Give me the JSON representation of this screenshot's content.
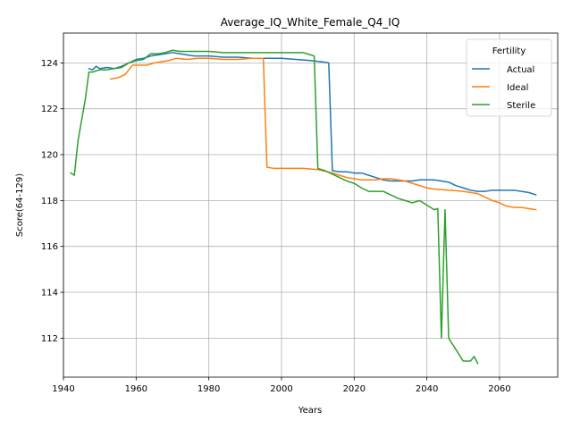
{
  "chart_data": {
    "type": "line",
    "title": "Average_IQ_White_Female_Q4_IQ",
    "xlabel": "Years",
    "ylabel": "Score(64-129)",
    "xlim": [
      1940,
      2076
    ],
    "ylim": [
      110.3,
      125.3
    ],
    "xticks": [
      1940,
      1960,
      1980,
      2000,
      2020,
      2040,
      2060
    ],
    "yticks": [
      112,
      114,
      116,
      118,
      120,
      122,
      124
    ],
    "grid": true,
    "legend": {
      "title": "Fertility",
      "placement": "top-right"
    },
    "series": [
      {
        "name": "Actual",
        "color": "#1f77b4",
        "points": [
          [
            1947,
            123.75
          ],
          [
            1948,
            123.7
          ],
          [
            1949,
            123.85
          ],
          [
            1950,
            123.75
          ],
          [
            1952,
            123.8
          ],
          [
            1954,
            123.75
          ],
          [
            1956,
            123.85
          ],
          [
            1958,
            124.0
          ],
          [
            1960,
            124.15
          ],
          [
            1962,
            124.2
          ],
          [
            1964,
            124.3
          ],
          [
            1966,
            124.35
          ],
          [
            1968,
            124.4
          ],
          [
            1970,
            124.45
          ],
          [
            1972,
            124.4
          ],
          [
            1974,
            124.35
          ],
          [
            1976,
            124.3
          ],
          [
            1980,
            124.3
          ],
          [
            1984,
            124.25
          ],
          [
            1988,
            124.25
          ],
          [
            1992,
            124.2
          ],
          [
            1996,
            124.2
          ],
          [
            2000,
            124.2
          ],
          [
            2004,
            124.15
          ],
          [
            2008,
            124.1
          ],
          [
            2011,
            124.05
          ],
          [
            2013,
            124.0
          ],
          [
            2014,
            119.3
          ],
          [
            2016,
            119.25
          ],
          [
            2018,
            119.25
          ],
          [
            2020,
            119.2
          ],
          [
            2022,
            119.2
          ],
          [
            2024,
            119.1
          ],
          [
            2026,
            119.0
          ],
          [
            2028,
            118.9
          ],
          [
            2030,
            118.85
          ],
          [
            2032,
            118.85
          ],
          [
            2034,
            118.85
          ],
          [
            2036,
            118.85
          ],
          [
            2038,
            118.9
          ],
          [
            2040,
            118.9
          ],
          [
            2042,
            118.9
          ],
          [
            2044,
            118.85
          ],
          [
            2046,
            118.8
          ],
          [
            2048,
            118.65
          ],
          [
            2050,
            118.55
          ],
          [
            2052,
            118.45
          ],
          [
            2054,
            118.4
          ],
          [
            2056,
            118.4
          ],
          [
            2058,
            118.45
          ],
          [
            2060,
            118.45
          ],
          [
            2062,
            118.45
          ],
          [
            2064,
            118.45
          ],
          [
            2066,
            118.4
          ],
          [
            2068,
            118.35
          ],
          [
            2070,
            118.25
          ]
        ]
      },
      {
        "name": "Ideal",
        "color": "#ff7f0e",
        "points": [
          [
            1953,
            123.3
          ],
          [
            1955,
            123.35
          ],
          [
            1957,
            123.5
          ],
          [
            1958,
            123.7
          ],
          [
            1959,
            123.9
          ],
          [
            1961,
            123.9
          ],
          [
            1963,
            123.9
          ],
          [
            1965,
            124.0
          ],
          [
            1967,
            124.05
          ],
          [
            1969,
            124.1
          ],
          [
            1971,
            124.2
          ],
          [
            1974,
            124.15
          ],
          [
            1977,
            124.2
          ],
          [
            1980,
            124.2
          ],
          [
            1984,
            124.15
          ],
          [
            1988,
            124.15
          ],
          [
            1992,
            124.2
          ],
          [
            1995,
            124.2
          ],
          [
            1996,
            119.45
          ],
          [
            1998,
            119.4
          ],
          [
            2002,
            119.4
          ],
          [
            2006,
            119.4
          ],
          [
            2010,
            119.35
          ],
          [
            2014,
            119.2
          ],
          [
            2016,
            119.1
          ],
          [
            2018,
            119.0
          ],
          [
            2020,
            118.95
          ],
          [
            2022,
            118.9
          ],
          [
            2024,
            118.9
          ],
          [
            2026,
            118.9
          ],
          [
            2028,
            118.95
          ],
          [
            2030,
            118.95
          ],
          [
            2032,
            118.9
          ],
          [
            2034,
            118.85
          ],
          [
            2036,
            118.75
          ],
          [
            2038,
            118.65
          ],
          [
            2040,
            118.55
          ],
          [
            2042,
            118.5
          ],
          [
            2046,
            118.45
          ],
          [
            2050,
            118.4
          ],
          [
            2052,
            118.35
          ],
          [
            2054,
            118.3
          ],
          [
            2056,
            118.15
          ],
          [
            2058,
            118.0
          ],
          [
            2060,
            117.9
          ],
          [
            2062,
            117.75
          ],
          [
            2064,
            117.7
          ],
          [
            2066,
            117.7
          ],
          [
            2068,
            117.65
          ],
          [
            2070,
            117.6
          ]
        ]
      },
      {
        "name": "Sterile",
        "color": "#2ca02c",
        "points": [
          [
            1942,
            119.2
          ],
          [
            1943,
            119.1
          ],
          [
            1944,
            120.6
          ],
          [
            1946,
            122.4
          ],
          [
            1947,
            123.6
          ],
          [
            1948,
            123.6
          ],
          [
            1950,
            123.7
          ],
          [
            1952,
            123.7
          ],
          [
            1954,
            123.75
          ],
          [
            1956,
            123.8
          ],
          [
            1958,
            124.0
          ],
          [
            1960,
            124.1
          ],
          [
            1962,
            124.15
          ],
          [
            1964,
            124.4
          ],
          [
            1966,
            124.4
          ],
          [
            1968,
            124.45
          ],
          [
            1970,
            124.55
          ],
          [
            1972,
            124.5
          ],
          [
            1976,
            124.5
          ],
          [
            1980,
            124.5
          ],
          [
            1984,
            124.45
          ],
          [
            1988,
            124.45
          ],
          [
            1992,
            124.45
          ],
          [
            1996,
            124.45
          ],
          [
            2000,
            124.45
          ],
          [
            2004,
            124.45
          ],
          [
            2006,
            124.45
          ],
          [
            2008,
            124.35
          ],
          [
            2009,
            124.3
          ],
          [
            2010,
            119.4
          ],
          [
            2012,
            119.3
          ],
          [
            2014,
            119.15
          ],
          [
            2016,
            119.0
          ],
          [
            2018,
            118.85
          ],
          [
            2020,
            118.75
          ],
          [
            2022,
            118.55
          ],
          [
            2024,
            118.4
          ],
          [
            2026,
            118.4
          ],
          [
            2028,
            118.4
          ],
          [
            2030,
            118.25
          ],
          [
            2032,
            118.1
          ],
          [
            2034,
            118.0
          ],
          [
            2036,
            117.9
          ],
          [
            2038,
            118.0
          ],
          [
            2040,
            117.8
          ],
          [
            2042,
            117.6
          ],
          [
            2043,
            117.65
          ],
          [
            2044,
            112.0
          ],
          [
            2045,
            117.6
          ],
          [
            2046,
            112.0
          ],
          [
            2048,
            111.5
          ],
          [
            2050,
            111.0
          ],
          [
            2052,
            111.0
          ],
          [
            2053,
            111.2
          ],
          [
            2054,
            110.9
          ]
        ]
      }
    ]
  }
}
